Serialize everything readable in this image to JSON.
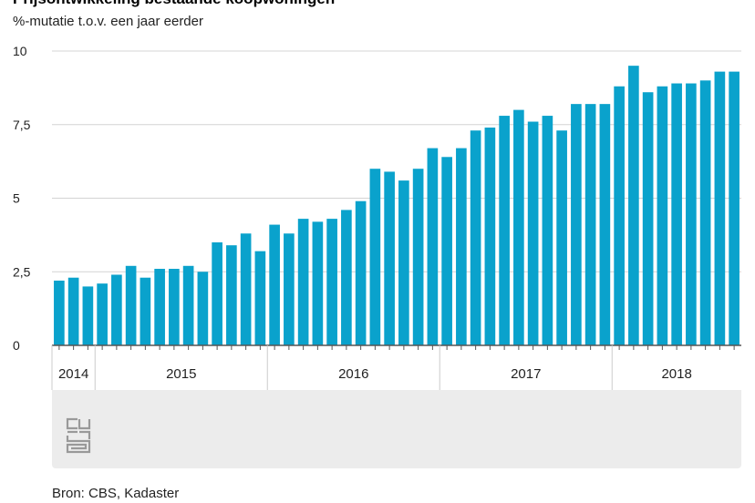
{
  "colors": {
    "bar": "#0aa2cc",
    "grid": "#d4d4d4",
    "axis": "#555555",
    "panel": "#ececec",
    "logo": "#999999"
  },
  "chart_data": {
    "type": "bar",
    "title": "Prijsontwikkeling bestaande koopwoningen",
    "ylabel": "%-mutatie t.o.v. een jaar eerder",
    "ylim": [
      0,
      10
    ],
    "yticks": [
      0,
      2.5,
      5,
      7.5,
      10
    ],
    "ytick_labels": [
      "0",
      "2,5",
      "5",
      "7,5",
      "10"
    ],
    "grid": true,
    "years": [
      {
        "label": "2014",
        "months": 3
      },
      {
        "label": "2015",
        "months": 12
      },
      {
        "label": "2016",
        "months": 12
      },
      {
        "label": "2017",
        "months": 12
      },
      {
        "label": "2018",
        "months": 9
      }
    ],
    "categories": [
      "2014-10",
      "2014-11",
      "2014-12",
      "2015-01",
      "2015-02",
      "2015-03",
      "2015-04",
      "2015-05",
      "2015-06",
      "2015-07",
      "2015-08",
      "2015-09",
      "2015-10",
      "2015-11",
      "2015-12",
      "2016-01",
      "2016-02",
      "2016-03",
      "2016-04",
      "2016-05",
      "2016-06",
      "2016-07",
      "2016-08",
      "2016-09",
      "2016-10",
      "2016-11",
      "2016-12",
      "2017-01",
      "2017-02",
      "2017-03",
      "2017-04",
      "2017-05",
      "2017-06",
      "2017-07",
      "2017-08",
      "2017-09",
      "2017-10",
      "2017-11",
      "2017-12",
      "2018-01",
      "2018-02",
      "2018-03",
      "2018-04",
      "2018-05",
      "2018-06",
      "2018-07",
      "2018-08",
      "2018-09"
    ],
    "values": [
      2.2,
      2.3,
      2.0,
      2.1,
      2.4,
      2.7,
      2.3,
      2.6,
      2.6,
      2.7,
      2.5,
      3.5,
      3.4,
      3.8,
      3.2,
      4.1,
      3.8,
      4.3,
      4.2,
      4.3,
      4.6,
      4.9,
      6.0,
      5.9,
      5.6,
      6.0,
      6.7,
      6.4,
      6.7,
      7.3,
      7.4,
      7.8,
      8.0,
      7.6,
      7.8,
      7.3,
      8.2,
      8.2,
      8.2,
      8.8,
      9.5,
      8.6,
      8.8,
      8.9,
      8.9,
      9.0,
      9.3,
      9.3
    ]
  },
  "source": "Bron: CBS, Kadaster",
  "logo": {
    "text": "cbs"
  }
}
